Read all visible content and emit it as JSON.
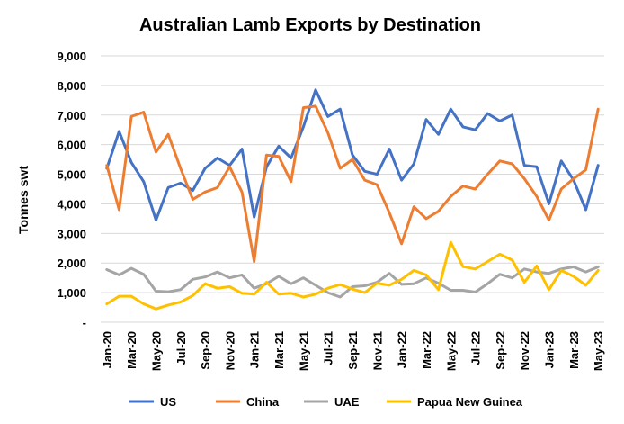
{
  "chart_data": {
    "type": "line",
    "title": "Australian Lamb Exports by Destination",
    "ylabel": "Tonnes swt",
    "xlabel": "",
    "ylim": [
      0,
      9000
    ],
    "yticks": [
      0,
      1000,
      2000,
      3000,
      4000,
      5000,
      6000,
      7000,
      8000,
      9000
    ],
    "ytick_labels": [
      "-",
      "1,000",
      "2,000",
      "3,000",
      "4,000",
      "5,000",
      "6,000",
      "7,000",
      "8,000",
      "9,000"
    ],
    "grid": true,
    "legend_position": "bottom",
    "categories": [
      "Jan-20",
      "Feb-20",
      "Mar-20",
      "Apr-20",
      "May-20",
      "Jun-20",
      "Jul-20",
      "Aug-20",
      "Sep-20",
      "Oct-20",
      "Nov-20",
      "Dec-20",
      "Jan-21",
      "Feb-21",
      "Mar-21",
      "Apr-21",
      "May-21",
      "Jun-21",
      "Jul-21",
      "Aug-21",
      "Sep-21",
      "Oct-21",
      "Nov-21",
      "Dec-21",
      "Jan-22",
      "Feb-22",
      "Mar-22",
      "Apr-22",
      "May-22",
      "Jun-22",
      "Jul-22",
      "Aug-22",
      "Sep-22",
      "Oct-22",
      "Nov-22",
      "Dec-22",
      "Jan-23",
      "Feb-23",
      "Mar-23",
      "Apr-23",
      "May-23"
    ],
    "tick_labels": [
      "Jan-20",
      "Mar-20",
      "May-20",
      "Jul-20",
      "Sep-20",
      "Nov-20",
      "Jan-21",
      "Mar-21",
      "May-21",
      "Jul-21",
      "Sep-21",
      "Nov-21",
      "Jan-22",
      "Mar-22",
      "May-22",
      "Jul-22",
      "Sep-22",
      "Nov-22",
      "Jan-23",
      "Mar-23",
      "May-23"
    ],
    "series": [
      {
        "name": "US",
        "color": "#4472C4",
        "values": [
          5200,
          6450,
          5400,
          4750,
          3450,
          4550,
          4700,
          4450,
          5200,
          5550,
          5300,
          5850,
          3550,
          5250,
          5950,
          5550,
          6600,
          7850,
          6950,
          7200,
          5650,
          5100,
          5000,
          5850,
          4800,
          5350,
          6850,
          6350,
          7200,
          6600,
          6500,
          7050,
          6800,
          7000,
          5300,
          5250,
          4000,
          5450,
          4800,
          3800,
          5300
        ]
      },
      {
        "name": "China",
        "color": "#ED7D31",
        "values": [
          5300,
          3800,
          6950,
          7100,
          5750,
          6350,
          5200,
          4150,
          4400,
          4550,
          5250,
          4400,
          2050,
          5650,
          5600,
          4750,
          7250,
          7300,
          6400,
          5200,
          5500,
          4800,
          4650,
          3700,
          2650,
          3900,
          3500,
          3750,
          4250,
          4600,
          4500,
          5000,
          5450,
          5350,
          4850,
          4250,
          3450,
          4500,
          4850,
          5150,
          7200
        ]
      },
      {
        "name": "UAE",
        "color": "#A5A5A5",
        "values": [
          1780,
          1600,
          1820,
          1620,
          1050,
          1030,
          1100,
          1450,
          1530,
          1700,
          1500,
          1600,
          1150,
          1300,
          1550,
          1300,
          1500,
          1250,
          1000,
          850,
          1200,
          1230,
          1350,
          1650,
          1280,
          1300,
          1500,
          1320,
          1080,
          1080,
          1020,
          1300,
          1620,
          1500,
          1800,
          1700,
          1650,
          1800,
          1870,
          1700,
          1870
        ]
      },
      {
        "name": "Papua New Guinea",
        "color": "#FFC000",
        "values": [
          620,
          880,
          880,
          620,
          450,
          580,
          680,
          900,
          1300,
          1150,
          1200,
          980,
          950,
          1350,
          950,
          980,
          850,
          950,
          1150,
          1270,
          1120,
          1000,
          1320,
          1250,
          1450,
          1750,
          1600,
          1100,
          2700,
          1880,
          1800,
          2050,
          2300,
          2100,
          1350,
          1900,
          1100,
          1750,
          1550,
          1250,
          1750
        ]
      }
    ]
  }
}
